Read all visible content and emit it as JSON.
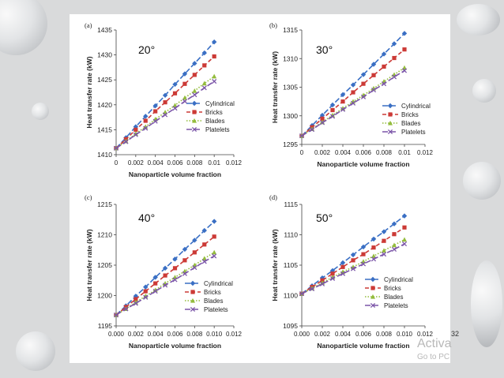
{
  "slide_number": "32",
  "watermark": {
    "line1": "Activa",
    "line2": "Go to PC"
  },
  "colors": {
    "Cylindrical": "#3a6fc4",
    "Bricks": "#cc3a36",
    "Blades": "#93bc3c",
    "Platelets": "#7b55a8"
  },
  "chart_data": [
    {
      "type": "line",
      "panel_label": "(a)",
      "angle_label": "20°",
      "xlabel": "Nanoparticle volume fraction",
      "ylabel": "Heat transfer rate (kW)",
      "xlim": [
        0,
        0.012
      ],
      "ylim": [
        1410,
        1435
      ],
      "xticks": [
        "0",
        "0.002",
        "0.004",
        "0.006",
        "0.008",
        "0.01",
        "0.012"
      ],
      "yticks": [
        "1410",
        "1415",
        "1420",
        "1425",
        "1430",
        "1435"
      ],
      "legend": "lower-right",
      "x": [
        0,
        0.001,
        0.002,
        0.003,
        0.004,
        0.005,
        0.006,
        0.007,
        0.008,
        0.009,
        0.01
      ],
      "series": [
        {
          "name": "Cylindrical",
          "marker": "diamond",
          "values": [
            1411.3,
            1413.4,
            1415.6,
            1417.7,
            1419.8,
            1421.9,
            1424.1,
            1426.2,
            1428.3,
            1430.4,
            1432.6
          ]
        },
        {
          "name": "Bricks",
          "marker": "square",
          "values": [
            1411.3,
            1413.1,
            1415.0,
            1416.8,
            1418.7,
            1420.5,
            1422.3,
            1424.2,
            1426.0,
            1427.9,
            1429.7
          ]
        },
        {
          "name": "Blades",
          "marker": "triangle",
          "values": [
            1411.3,
            1412.7,
            1414.2,
            1415.6,
            1417.1,
            1418.5,
            1419.9,
            1421.4,
            1422.8,
            1424.3,
            1425.7
          ]
        },
        {
          "name": "Platelets",
          "marker": "x",
          "values": [
            1411.3,
            1412.6,
            1414.0,
            1415.3,
            1416.7,
            1418.0,
            1419.3,
            1420.7,
            1422.0,
            1423.4,
            1424.7
          ]
        }
      ]
    },
    {
      "type": "line",
      "panel_label": "(b)",
      "angle_label": "30°",
      "xlabel": "Nanoparticle volume fraction",
      "ylabel": "Heat transfer rate (kW)",
      "xlim": [
        0,
        0.012
      ],
      "ylim": [
        1295,
        1315
      ],
      "xticks": [
        "0",
        "0.002",
        "0.004",
        "0.006",
        "0.008",
        "0.01",
        "0.012"
      ],
      "yticks": [
        "1295",
        "1300",
        "1305",
        "1310",
        "1315"
      ],
      "legend": "lower-right",
      "x": [
        0,
        0.001,
        0.002,
        0.003,
        0.004,
        0.005,
        0.006,
        0.007,
        0.008,
        0.009,
        0.01
      ],
      "series": [
        {
          "name": "Cylindrical",
          "marker": "diamond",
          "values": [
            1296.5,
            1298.3,
            1300.1,
            1301.9,
            1303.7,
            1305.4,
            1307.2,
            1309.0,
            1310.8,
            1312.6,
            1314.4
          ]
        },
        {
          "name": "Bricks",
          "marker": "square",
          "values": [
            1296.5,
            1298.0,
            1299.5,
            1301.0,
            1302.5,
            1304.1,
            1305.6,
            1307.1,
            1308.6,
            1310.1,
            1311.6
          ]
        },
        {
          "name": "Blades",
          "marker": "triangle",
          "values": [
            1296.5,
            1297.7,
            1298.9,
            1300.1,
            1301.3,
            1302.5,
            1303.6,
            1304.8,
            1306.0,
            1307.2,
            1308.4
          ]
        },
        {
          "name": "Platelets",
          "marker": "x",
          "values": [
            1296.5,
            1297.6,
            1298.8,
            1299.9,
            1301.1,
            1302.2,
            1303.3,
            1304.5,
            1305.6,
            1306.8,
            1307.9
          ]
        }
      ]
    },
    {
      "type": "line",
      "panel_label": "(c)",
      "angle_label": "40°",
      "xlabel": "Nanoparticle volume fraction",
      "ylabel": "Heat transfer rate (kW)",
      "xlim": [
        0,
        0.012
      ],
      "ylim": [
        1195,
        1215
      ],
      "xticks": [
        "0.000",
        "0.002",
        "0.004",
        "0.006",
        "0.008",
        "0.010",
        "0.012"
      ],
      "yticks": [
        "1195",
        "1200",
        "1205",
        "1210",
        "1215"
      ],
      "legend": "lower-right",
      "x": [
        0,
        0.001,
        0.002,
        0.003,
        0.004,
        0.005,
        0.006,
        0.007,
        0.008,
        0.009,
        0.01
      ],
      "series": [
        {
          "name": "Cylindrical",
          "marker": "diamond",
          "values": [
            1196.8,
            1198.3,
            1199.9,
            1201.4,
            1203.0,
            1204.5,
            1206.0,
            1207.6,
            1209.1,
            1210.7,
            1212.2
          ]
        },
        {
          "name": "Bricks",
          "marker": "square",
          "values": [
            1196.8,
            1198.1,
            1199.4,
            1200.7,
            1202.0,
            1203.3,
            1204.5,
            1205.8,
            1207.1,
            1208.4,
            1209.7
          ]
        },
        {
          "name": "Blades",
          "marker": "triangle",
          "values": [
            1196.8,
            1197.8,
            1198.9,
            1199.9,
            1200.9,
            1202.0,
            1203.0,
            1204.0,
            1205.0,
            1206.1,
            1207.1
          ]
        },
        {
          "name": "Platelets",
          "marker": "x",
          "values": [
            1196.8,
            1197.8,
            1198.7,
            1199.7,
            1200.7,
            1201.7,
            1202.6,
            1203.6,
            1204.6,
            1205.6,
            1206.5
          ]
        }
      ]
    },
    {
      "type": "line",
      "panel_label": "(d)",
      "angle_label": "50°",
      "xlabel": "Nanoparticle volume fraction",
      "ylabel": "Heat transfer rate (kW)",
      "xlim": [
        0,
        0.012
      ],
      "ylim": [
        1095,
        1115
      ],
      "xticks": [
        "0.000",
        "0.002",
        "0.004",
        "0.006",
        "0.008",
        "0.010",
        "0.012"
      ],
      "yticks": [
        "1095",
        "1100",
        "1105",
        "1110",
        "1115"
      ],
      "legend": "lower-right",
      "x": [
        0,
        0.001,
        0.002,
        0.003,
        0.004,
        0.005,
        0.006,
        0.007,
        0.008,
        0.009,
        0.01
      ],
      "series": [
        {
          "name": "Cylindrical",
          "marker": "diamond",
          "values": [
            1100.3,
            1101.6,
            1102.9,
            1104.1,
            1105.4,
            1106.7,
            1108.0,
            1109.3,
            1110.5,
            1111.8,
            1113.1
          ]
        },
        {
          "name": "Bricks",
          "marker": "square",
          "values": [
            1100.3,
            1101.4,
            1102.5,
            1103.6,
            1104.7,
            1105.8,
            1106.8,
            1107.9,
            1109.0,
            1110.1,
            1111.2
          ]
        },
        {
          "name": "Blades",
          "marker": "triangle",
          "values": [
            1100.3,
            1101.2,
            1102.1,
            1103.0,
            1103.9,
            1104.7,
            1105.6,
            1106.5,
            1107.4,
            1108.3,
            1109.2
          ]
        },
        {
          "name": "Platelets",
          "marker": "x",
          "values": [
            1100.3,
            1101.1,
            1101.9,
            1102.8,
            1103.6,
            1104.4,
            1105.2,
            1106.0,
            1106.8,
            1107.6,
            1108.5
          ]
        }
      ]
    }
  ]
}
